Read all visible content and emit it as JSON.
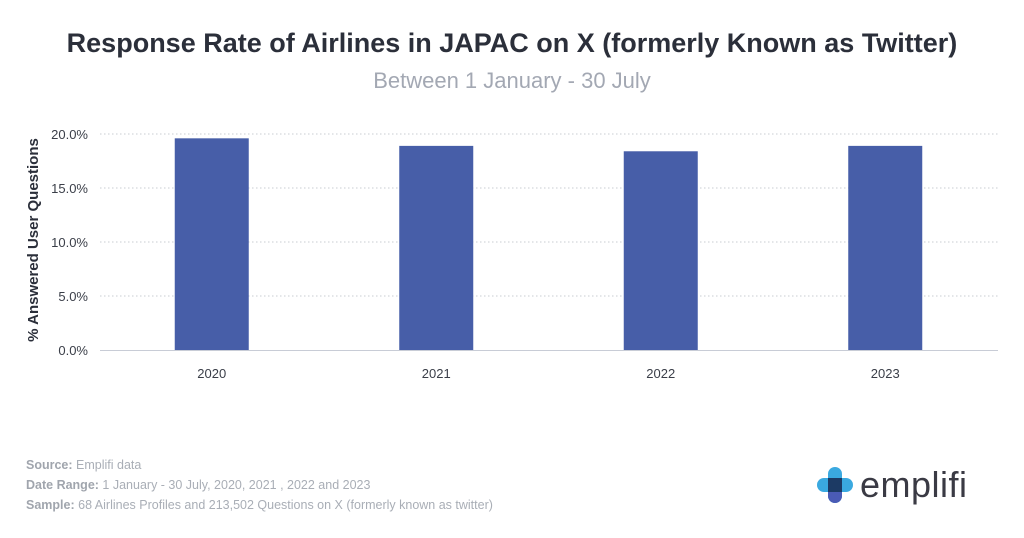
{
  "chart_data": {
    "type": "bar",
    "title": "Response Rate of Airlines in JAPAC on X (formerly Known as Twitter)",
    "subtitle": "Between 1 January - 30 July",
    "xlabel": "",
    "ylabel": "% Answered User Questions",
    "categories": [
      "2020",
      "2021",
      "2022",
      "2023"
    ],
    "values": [
      19.6,
      18.9,
      18.4,
      18.9
    ],
    "ylim": [
      0,
      20
    ],
    "yticks": [
      "0.0%",
      "5.0%",
      "10.0%",
      "15.0%",
      "20.0%"
    ],
    "grid": true,
    "bar_color": "#475ea8"
  },
  "footer": {
    "source_label": "Source:",
    "source": "Emplifi data",
    "date_label": "Date Range:",
    "date": "1 January - 30 July, 2020, 2021 , 2022 and 2023",
    "sample_label": "Sample:",
    "sample": "68 Airlines Profiles and 213,502 Questions on X (formerly known as twitter)"
  },
  "logo": {
    "text": "emplifi",
    "icon": "emplifi-cross-icon"
  }
}
